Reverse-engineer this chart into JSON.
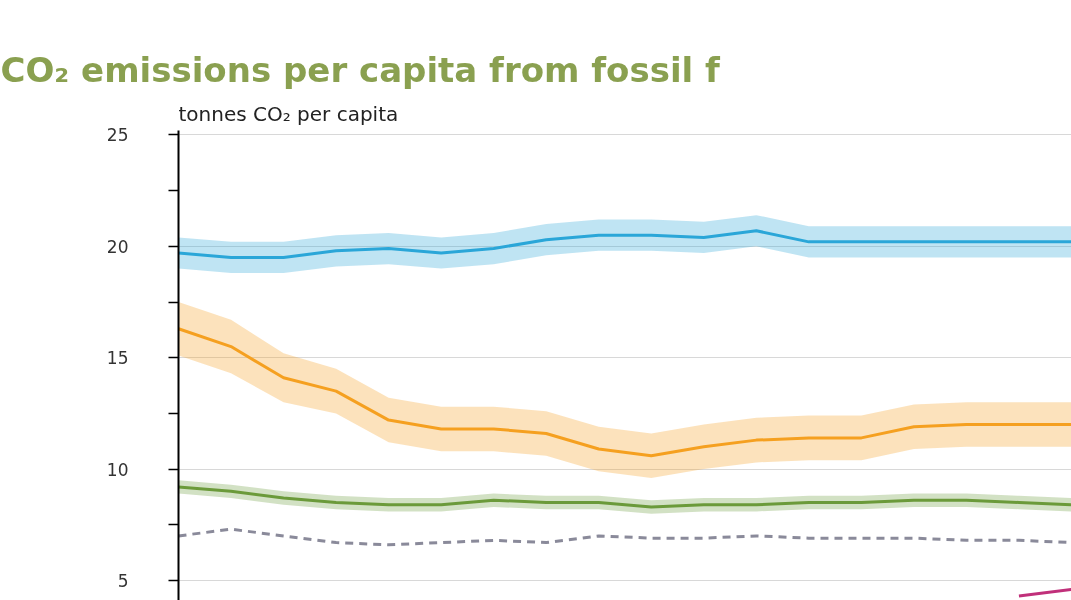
{
  "chart_data": {
    "type": "line",
    "title": "CO₂ emissions per capita from fossil f",
    "ylabel": "tonnes CO₂ per capita",
    "categories": [
      null,
      null,
      null,
      null,
      null,
      null,
      null,
      null,
      null,
      null,
      null,
      null,
      null,
      null,
      null,
      null,
      null,
      null
    ],
    "series": [
      {
        "color": "#2aa6d8",
        "values": [
          19.7,
          19.5,
          19.5,
          19.8,
          19.9,
          19.7,
          19.9,
          20.3,
          20.5,
          20.5,
          20.4,
          20.7,
          20.2,
          20.2,
          20.2,
          20.2,
          20.2,
          20.2
        ],
        "lower": [
          19.0,
          18.8,
          18.8,
          19.1,
          19.2,
          19.0,
          19.2,
          19.6,
          19.8,
          19.8,
          19.7,
          20.0,
          19.5,
          19.5,
          19.5,
          19.5,
          19.5,
          19.5
        ],
        "upper": [
          20.4,
          20.2,
          20.2,
          20.5,
          20.6,
          20.4,
          20.6,
          21.0,
          21.2,
          21.2,
          21.1,
          21.4,
          20.9,
          20.9,
          20.9,
          20.9,
          20.9,
          20.9
        ]
      },
      {
        "color": "#f5a020",
        "values": [
          16.3,
          15.5,
          14.1,
          13.5,
          12.2,
          11.8,
          11.8,
          11.6,
          10.9,
          10.6,
          11.0,
          11.3,
          11.4,
          11.4,
          11.9,
          12.0,
          12.0,
          12.0
        ],
        "lower": [
          15.1,
          14.3,
          13.0,
          12.5,
          11.2,
          10.8,
          10.8,
          10.6,
          9.9,
          9.6,
          10.0,
          10.3,
          10.4,
          10.4,
          10.9,
          11.0,
          11.0,
          11.0
        ],
        "upper": [
          17.5,
          16.7,
          15.2,
          14.5,
          13.2,
          12.8,
          12.8,
          12.6,
          11.9,
          11.6,
          12.0,
          12.3,
          12.4,
          12.4,
          12.9,
          13.0,
          13.0,
          13.0
        ]
      },
      {
        "color": "#6b9a3a",
        "values": [
          9.2,
          9.0,
          8.7,
          8.5,
          8.4,
          8.4,
          8.6,
          8.5,
          8.5,
          8.3,
          8.4,
          8.4,
          8.5,
          8.5,
          8.6,
          8.6,
          8.5,
          8.4
        ],
        "lower": [
          8.9,
          8.7,
          8.4,
          8.2,
          8.1,
          8.1,
          8.3,
          8.2,
          8.2,
          8.0,
          8.1,
          8.1,
          8.2,
          8.2,
          8.3,
          8.3,
          8.2,
          8.1
        ],
        "upper": [
          9.5,
          9.3,
          9.0,
          8.8,
          8.7,
          8.7,
          8.9,
          8.8,
          8.8,
          8.6,
          8.7,
          8.7,
          8.8,
          8.8,
          8.9,
          8.9,
          8.8,
          8.7
        ]
      },
      {
        "color": "#8a8a9a",
        "line_style": "dashed",
        "values": [
          7.0,
          7.3,
          7.0,
          6.7,
          6.6,
          6.7,
          6.8,
          6.7,
          7.0,
          6.9,
          6.9,
          7.0,
          6.9,
          6.9,
          6.9,
          6.8,
          6.8,
          6.7
        ]
      },
      {
        "color": "#c0307a",
        "values": [
          null,
          null,
          null,
          null,
          null,
          null,
          null,
          null,
          null,
          null,
          null,
          null,
          null,
          null,
          null,
          null,
          4.3,
          4.6
        ]
      }
    ],
    "ylim": [
      4.1,
      25.2
    ],
    "yticks": [
      5,
      {
        "value": 7.5,
        "label": null
      },
      10,
      {
        "value": 12.5,
        "label": null
      },
      15,
      {
        "value": 17.5,
        "label": null
      },
      20,
      {
        "value": 22.5,
        "label": null
      },
      25
    ],
    "grid": "y",
    "tick_labels": "y",
    "marker": "none",
    "line_style": "solid"
  }
}
